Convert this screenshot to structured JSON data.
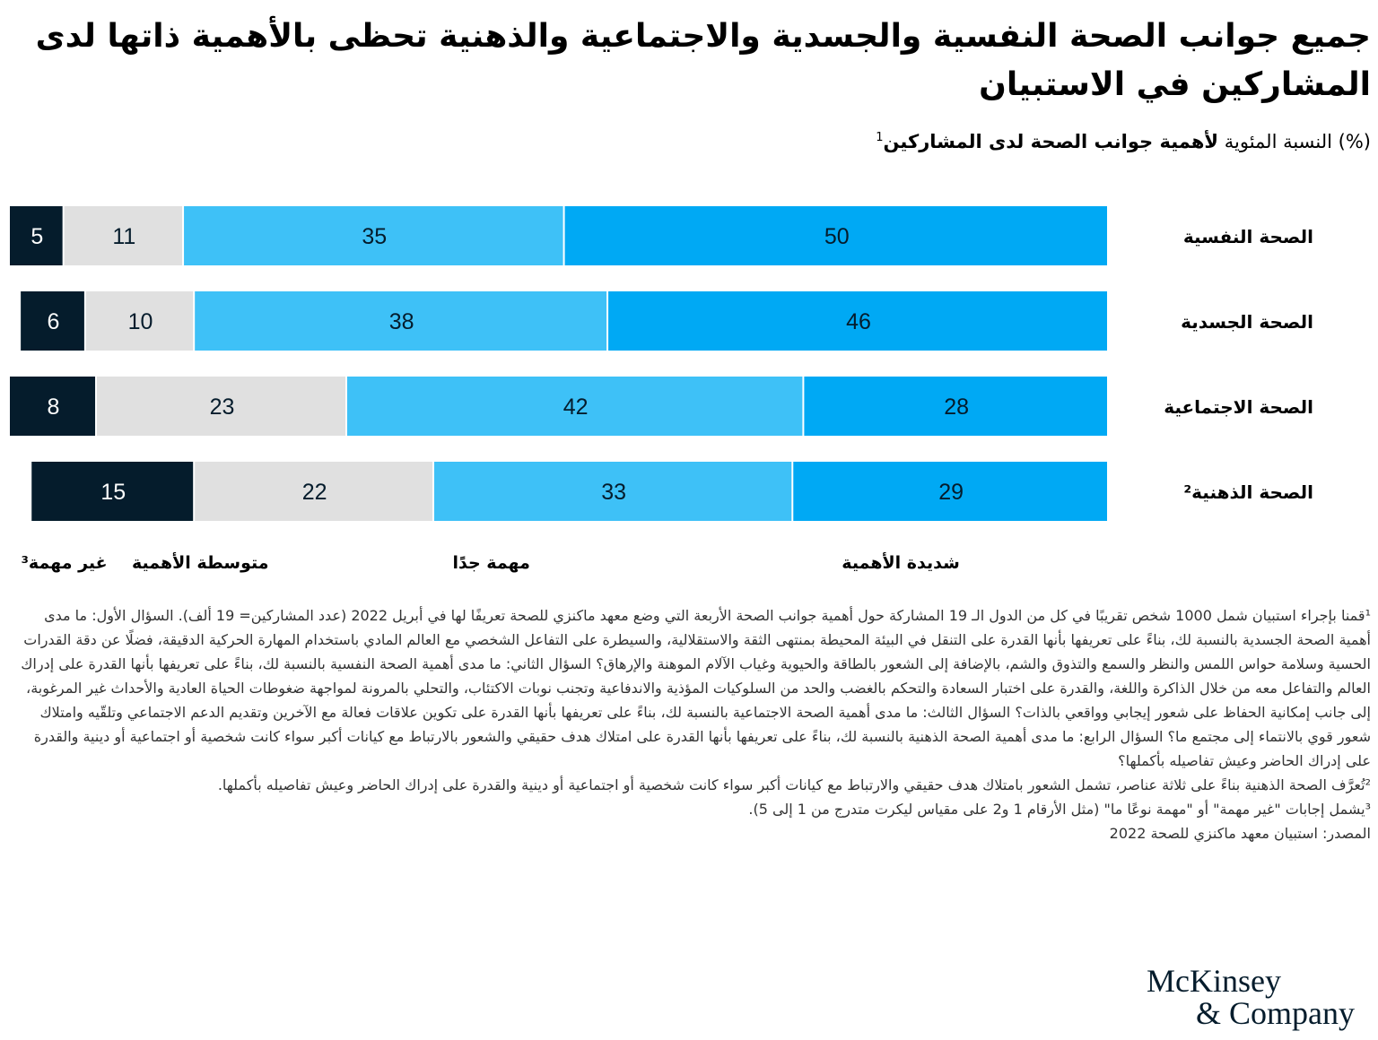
{
  "header": {
    "title": "جميع جوانب الصحة النفسية والجسدية والاجتماعية والذهنية تحظى بالأهمية ذاتها لدى المشاركين في الاستبيان",
    "subtitle_prefix": "(%) النسبة المئوية ",
    "subtitle_bold": "لأهمية جوانب الصحة لدى المشاركين",
    "subtitle_sup": "1"
  },
  "colors": {
    "extremely": "#00a9f4",
    "very": "#3ec1f7",
    "moderate": "#e0e0e0",
    "not": "#051c2c"
  },
  "chart_data": {
    "type": "bar",
    "orientation": "horizontal-stacked",
    "categories": [
      "الصحة النفسية",
      "الصحة الجسدية",
      "الصحة الاجتماعية",
      "الصحة الذهنية²"
    ],
    "series": [
      {
        "name": "شديدة الأهمية",
        "values": [
          50,
          46,
          28,
          29
        ]
      },
      {
        "name": "مهمة جدًا",
        "values": [
          35,
          38,
          42,
          33
        ]
      },
      {
        "name": "متوسطة الأهمية",
        "values": [
          11,
          10,
          23,
          22
        ]
      },
      {
        "name": "غير مهمة³",
        "values": [
          5,
          6,
          8,
          15
        ]
      }
    ],
    "xlim": [
      0,
      101
    ],
    "unit": "%"
  },
  "footnotes": [
    "¹قمنا بإجراء استبيان شمل 1000 شخص تقريبًا في كل من الدول الـ 19 المشاركة حول أهمية جوانب الصحة الأربعة التي وضع معهد ماكنزي للصحة تعريفًا لها في أبريل 2022 (عدد المشاركين= 19 ألف). السؤال الأول: ما مدى أهمية الصحة الجسدية بالنسبة لك، بناءً على تعريفها بأنها القدرة على التنقل في البيئة المحيطة بمنتهى الثقة والاستقلالية، والسيطرة على التفاعل الشخصي مع العالم المادي باستخدام المهارة الحركية الدقيقة، فضلًا عن دقة القدرات الحسية وسلامة حواس اللمس والنظر والسمع والتذوق والشم، بالإضافة إلى الشعور بالطاقة والحيوية وغياب الآلام الموهنة والإرهاق؟ السؤال الثاني: ما مدى أهمية الصحة النفسية بالنسبة لك، بناءً على تعريفها بأنها القدرة على إدراك العالم والتفاعل معه من خلال الذاكرة واللغة، والقدرة على اختبار السعادة والتحكم بالغضب والحد من السلوكيات المؤذية والاندفاعية وتجنب نوبات الاكتئاب، والتحلي بالمرونة لمواجهة ضغوطات الحياة العادية والأحداث غير المرغوبة، إلى جانب إمكانية الحفاظ على شعور إيجابي وواقعي بالذات؟ السؤال الثالث: ما مدى أهمية الصحة الاجتماعية بالنسبة لك، بناءً على تعريفها بأنها القدرة على تكوين علاقات فعالة مع الآخرين وتقديم الدعم الاجتماعي وتلقّيه وامتلاك شعور قوي بالانتماء إلى مجتمع ما؟ السؤال الرابع: ما مدى أهمية الصحة الذهنية بالنسبة لك، بناءً على تعريفها بأنها القدرة على امتلاك هدف حقيقي والشعور بالارتباط مع كيانات أكبر سواء كانت شخصية أو اجتماعية أو دينية والقدرة على إدراك الحاضر وعيش تفاصيله بأكملها؟",
    "²تُعرَّف الصحة الذهنية بناءً على ثلاثة عناصر، تشمل الشعور بامتلاك هدف حقيقي والارتباط مع كيانات أكبر سواء كانت شخصية أو اجتماعية أو دينية والقدرة على إدراك الحاضر وعيش تفاصيله بأكملها.",
    "³يشمل إجابات \"غير مهمة\" أو \"مهمة نوعًا ما\" (مثل الأرقام 1 و2 على مقياس ليكرت متدرج من 1 إلى 5).",
    "المصدر: استبيان معهد ماكنزي للصحة 2022"
  ],
  "logo": {
    "line1": "McKinsey",
    "line2": "& Company"
  }
}
